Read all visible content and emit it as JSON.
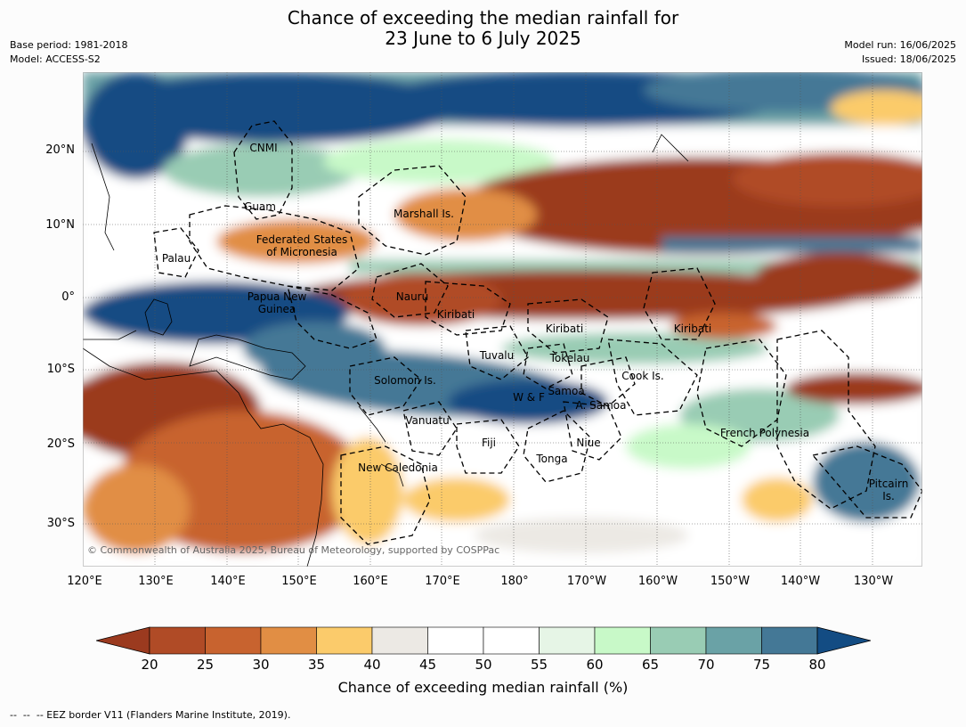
{
  "title_line1": "Chance of exceeding the median rainfall for",
  "title_line2": "23 June to 6 July 2025",
  "meta": {
    "base_period": "Base period: 1981-2018",
    "model": "Model: ACCESS-S2",
    "model_run": "Model run: 16/06/2025",
    "issued": "Issued: 18/06/2025"
  },
  "copyright": "© Commonwealth of Australia 2025, Bureau of Meteorology, supported by COSPPac",
  "lat_ticks": [
    "20°N",
    "10°N",
    "0°",
    "10°S",
    "20°S",
    "30°S"
  ],
  "lon_ticks": [
    "120°E",
    "130°E",
    "140°E",
    "150°E",
    "160°E",
    "170°E",
    "180°",
    "170°W",
    "160°W",
    "150°W",
    "140°W",
    "130°W"
  ],
  "regions": [
    {
      "name": "CNMI"
    },
    {
      "name": "Guam"
    },
    {
      "name": "Marshall Is."
    },
    {
      "name": "Federated States"
    },
    {
      "name": "of Micronesia"
    },
    {
      "name": "Palau"
    },
    {
      "name": "Papua New"
    },
    {
      "name": "Guinea"
    },
    {
      "name": "Nauru"
    },
    {
      "name": "Kiribati"
    },
    {
      "name": "Kiribati"
    },
    {
      "name": "Kiribati"
    },
    {
      "name": "Tuvalu"
    },
    {
      "name": "Tokelau"
    },
    {
      "name": "Cook Is."
    },
    {
      "name": "Solomon Is."
    },
    {
      "name": "W & F"
    },
    {
      "name": "Samoa"
    },
    {
      "name": "A. Samoa"
    },
    {
      "name": "Vanuatu"
    },
    {
      "name": "Fiji"
    },
    {
      "name": "Niue"
    },
    {
      "name": "Tonga"
    },
    {
      "name": "French Polynesia"
    },
    {
      "name": "New Caledonia"
    },
    {
      "name": "Pitcairn"
    },
    {
      "name": "Is."
    }
  ],
  "colorbar": {
    "title": "Chance of exceeding median rainfall (%)",
    "labels": [
      "20",
      "25",
      "30",
      "35",
      "40",
      "45",
      "50",
      "55",
      "60",
      "65",
      "70",
      "75",
      "80"
    ],
    "colors": [
      "#9b3a1f",
      "#b04b26",
      "#c8632f",
      "#e18e44",
      "#fbcb6b",
      "#ece9e4",
      "#ffffff",
      "#ffffff",
      "#e6f5e6",
      "#c8f9c8",
      "#99ccb4",
      "#6aa2a6",
      "#447896",
      "#134c83"
    ]
  },
  "footnote": "--  --  -- EEZ border V11 (Flanders Marine Institute, 2019)."
}
